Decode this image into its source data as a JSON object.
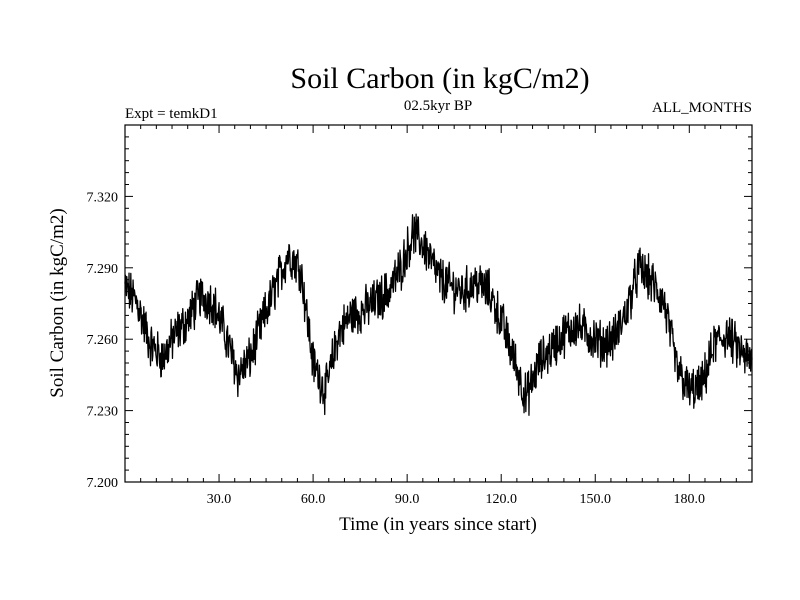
{
  "chart_data": {
    "type": "line",
    "title": "Soil Carbon (in kgC/m2)",
    "subtitle_left": "Expt = temkD1",
    "subtitle_center": "02.5kyr BP",
    "subtitle_right": "ALL_MONTHS",
    "xlabel": "Time (in years since start)",
    "ylabel": "Soil Carbon (in kgC/m2)",
    "xlim": [
      0,
      200
    ],
    "ylim": [
      7.2,
      7.35
    ],
    "xticks": [
      30,
      60,
      90,
      120,
      150,
      180
    ],
    "xtick_labels": [
      "30.0",
      "60.0",
      "90.0",
      "120.0",
      "150.0",
      "180.0"
    ],
    "yticks": [
      7.2,
      7.23,
      7.26,
      7.29,
      7.32
    ],
    "ytick_labels": [
      "7.200",
      "7.230",
      "7.260",
      "7.290",
      "7.320"
    ],
    "series": [
      {
        "name": "Soil Carbon",
        "color": "#000000",
        "x": [
          0,
          4,
          8,
          12,
          16,
          20,
          24,
          28,
          32,
          36,
          40,
          44,
          48,
          52,
          56,
          60,
          64,
          68,
          72,
          76,
          80,
          84,
          88,
          92,
          96,
          100,
          104,
          108,
          112,
          116,
          120,
          124,
          128,
          132,
          136,
          140,
          144,
          148,
          152,
          156,
          160,
          164,
          168,
          172,
          176,
          180,
          184,
          188,
          192,
          196,
          200
        ],
        "y": [
          7.282,
          7.275,
          7.258,
          7.252,
          7.262,
          7.268,
          7.278,
          7.276,
          7.262,
          7.245,
          7.252,
          7.268,
          7.282,
          7.296,
          7.29,
          7.25,
          7.238,
          7.262,
          7.27,
          7.272,
          7.276,
          7.28,
          7.29,
          7.305,
          7.298,
          7.286,
          7.282,
          7.28,
          7.284,
          7.28,
          7.268,
          7.252,
          7.235,
          7.25,
          7.256,
          7.262,
          7.266,
          7.262,
          7.258,
          7.26,
          7.272,
          7.29,
          7.284,
          7.275,
          7.248,
          7.238,
          7.24,
          7.258,
          7.262,
          7.255,
          7.25
        ]
      }
    ]
  }
}
